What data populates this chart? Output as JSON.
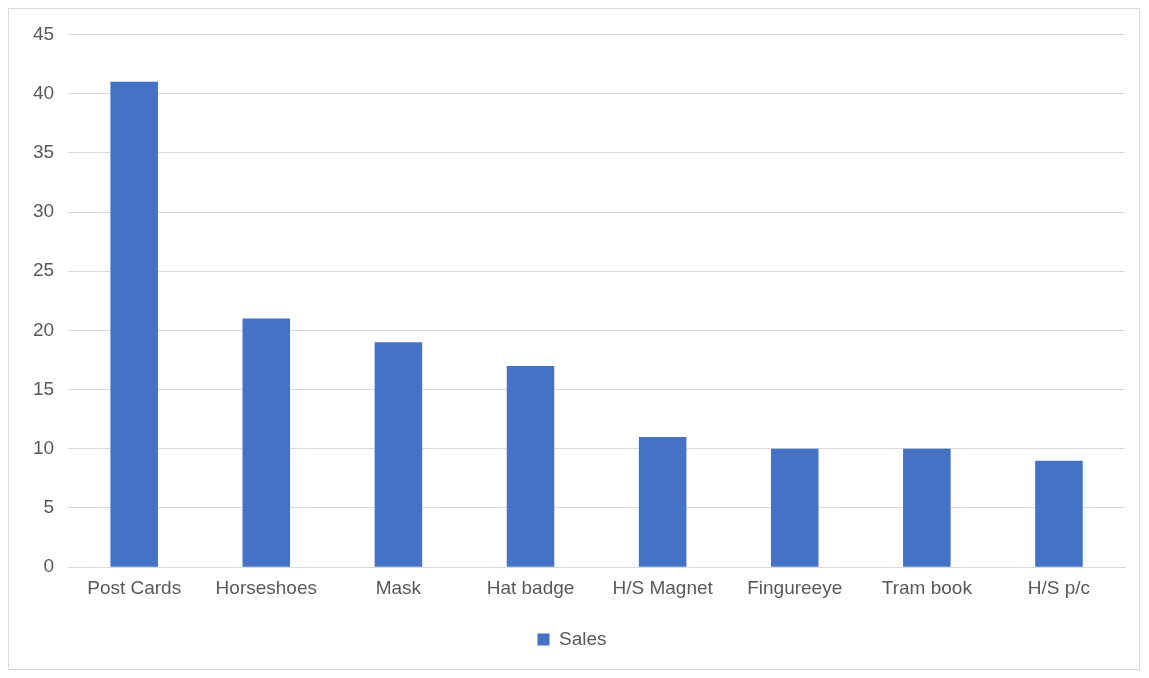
{
  "chart_data": {
    "type": "bar",
    "categories": [
      "Post Cards",
      "Horseshoes",
      "Mask",
      "Hat badge",
      "H/S Magnet",
      "Fingureeye",
      "Tram book",
      "H/S p/c"
    ],
    "series": [
      {
        "name": "Sales",
        "color": "#4472c4",
        "values": [
          41,
          21,
          19,
          17,
          11,
          10,
          10,
          9
        ]
      }
    ],
    "ylim": [
      0,
      45
    ],
    "yticks": [
      0,
      5,
      10,
      15,
      20,
      25,
      30,
      35,
      40,
      45
    ],
    "grid": "y",
    "legend": "bottom"
  }
}
